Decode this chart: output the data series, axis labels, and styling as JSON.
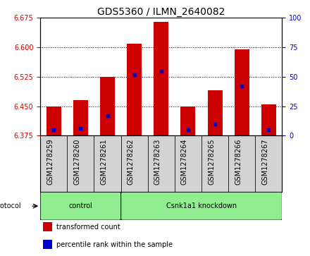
{
  "title": "GDS5360 / ILMN_2640082",
  "samples": [
    "GSM1278259",
    "GSM1278260",
    "GSM1278261",
    "GSM1278262",
    "GSM1278263",
    "GSM1278264",
    "GSM1278265",
    "GSM1278266",
    "GSM1278267"
  ],
  "transformed_counts": [
    6.45,
    6.465,
    6.525,
    6.61,
    6.665,
    6.45,
    6.49,
    6.595,
    6.455
  ],
  "percentile_ranks": [
    5,
    6,
    17,
    52,
    55,
    5,
    10,
    42,
    5
  ],
  "baseline": 6.375,
  "ylim_left": [
    6.375,
    6.675
  ],
  "ylim_right": [
    0,
    100
  ],
  "yticks_left": [
    6.375,
    6.45,
    6.525,
    6.6,
    6.675
  ],
  "yticks_right": [
    0,
    25,
    50,
    75,
    100
  ],
  "bar_color": "#cc0000",
  "percentile_color": "#0000cc",
  "bar_width": 0.55,
  "groups": [
    {
      "label": "control",
      "start": 0,
      "end": 2,
      "color": "#90ee90"
    },
    {
      "label": "Csnk1a1 knockdown",
      "start": 3,
      "end": 8,
      "color": "#90ee90"
    }
  ],
  "protocol_label": "protocol",
  "legend_items": [
    {
      "label": "transformed count",
      "color": "#cc0000"
    },
    {
      "label": "percentile rank within the sample",
      "color": "#0000cc"
    }
  ],
  "left_axis_color": "#cc0000",
  "right_axis_color": "#0000cc",
  "tick_area_color": "#d3d3d3",
  "title_fontsize": 10,
  "tick_fontsize": 7,
  "label_fontsize": 7,
  "legend_fontsize": 7
}
